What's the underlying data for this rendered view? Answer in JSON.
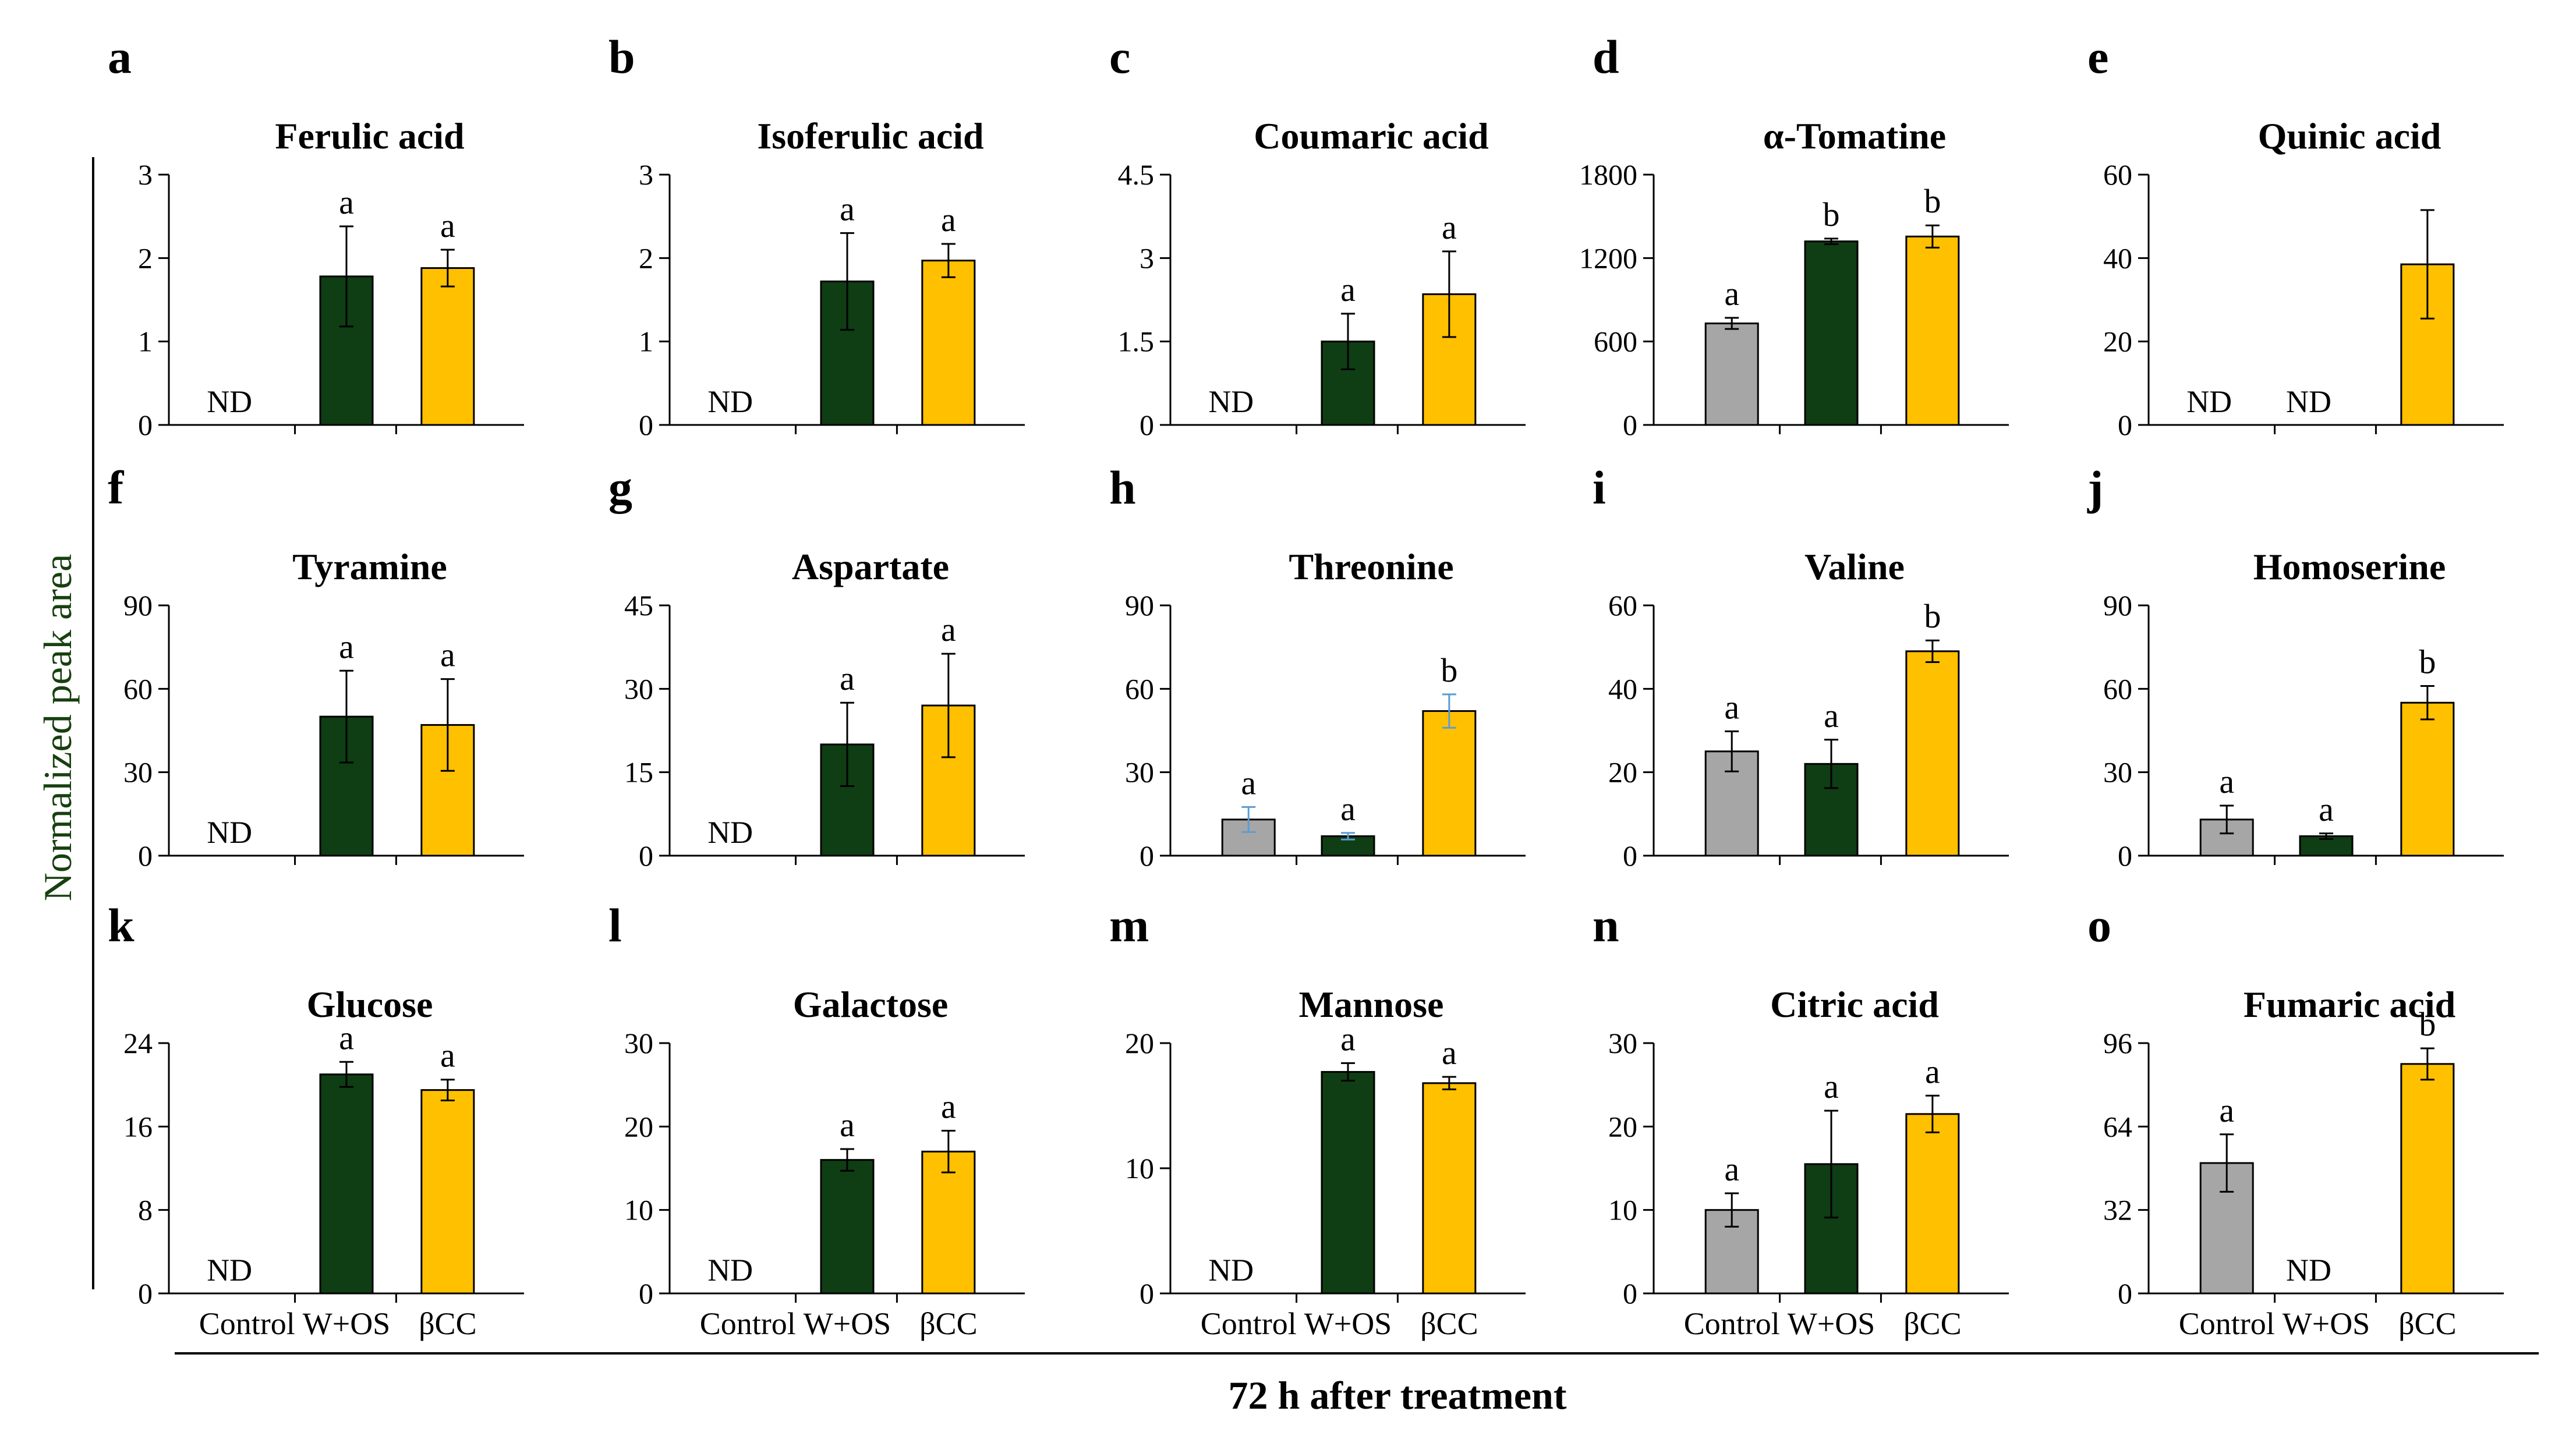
{
  "figure": {
    "ylabel": "Normalized peak area",
    "xlabel": "72 h after treatment",
    "colors": {
      "Control": "#a6a6a6",
      "W+OS": "#0f3d14",
      "βCC": "#ffc000",
      "error_bar": "#000000",
      "error_bar_alt": "#5b9bd5",
      "ylabel": "#17400f"
    },
    "nd_text": "ND"
  },
  "chart_data": [
    {
      "id": "a",
      "type": "bar",
      "title": "Ferulic acid",
      "categories": [
        "Control",
        "W+OS",
        "βCC"
      ],
      "values": [
        null,
        1.78,
        1.88
      ],
      "errors": [
        null,
        0.6,
        0.22
      ],
      "sig": [
        "",
        "a",
        "a"
      ],
      "nd": [
        true,
        false,
        false
      ],
      "yticks": [
        0,
        1,
        2,
        3
      ],
      "ytick_labels": [
        "0",
        "1",
        "2",
        "3"
      ],
      "ylim": [
        0,
        3
      ]
    },
    {
      "id": "b",
      "type": "bar",
      "title": "Isoferulic acid",
      "categories": [
        "Control",
        "W+OS",
        "βCC"
      ],
      "values": [
        null,
        1.72,
        1.97
      ],
      "errors": [
        null,
        0.58,
        0.2
      ],
      "sig": [
        "",
        "a",
        "a"
      ],
      "nd": [
        true,
        false,
        false
      ],
      "yticks": [
        0,
        1,
        2,
        3
      ],
      "ytick_labels": [
        "0",
        "1",
        "2",
        "3"
      ],
      "ylim": [
        0,
        3
      ]
    },
    {
      "id": "c",
      "type": "bar",
      "title": "Coumaric acid",
      "categories": [
        "Control",
        "W+OS",
        "βCC"
      ],
      "values": [
        null,
        1.5,
        2.35
      ],
      "errors": [
        null,
        0.5,
        0.77
      ],
      "sig": [
        "",
        "a",
        "a"
      ],
      "nd": [
        true,
        false,
        false
      ],
      "yticks": [
        0,
        1.5,
        3,
        4.5
      ],
      "ytick_labels": [
        "0",
        "1.5",
        "3",
        "4.5"
      ],
      "ylim": [
        0,
        4.5
      ]
    },
    {
      "id": "d",
      "type": "bar",
      "title": "α-Tomatine",
      "categories": [
        "Control",
        "W+OS",
        "βCC"
      ],
      "values": [
        730,
        1320,
        1355
      ],
      "errors": [
        40,
        20,
        80
      ],
      "sig": [
        "a",
        "b",
        "b"
      ],
      "nd": [
        false,
        false,
        false
      ],
      "yticks": [
        0,
        600,
        1200,
        1800
      ],
      "ytick_labels": [
        "0",
        "600",
        "1200",
        "1800"
      ],
      "ylim": [
        0,
        1800
      ]
    },
    {
      "id": "e",
      "type": "bar",
      "title": "Quinic acid",
      "categories": [
        "Control",
        "W+OS",
        "βCC"
      ],
      "values": [
        null,
        null,
        38.5
      ],
      "errors": [
        null,
        null,
        13
      ],
      "sig": [
        "",
        "",
        ""
      ],
      "nd": [
        true,
        true,
        false
      ],
      "yticks": [
        0,
        20,
        40,
        60
      ],
      "ytick_labels": [
        "0",
        "20",
        "40",
        "60"
      ],
      "ylim": [
        0,
        60
      ]
    },
    {
      "id": "f",
      "type": "bar",
      "title": "Tyramine",
      "categories": [
        "Control",
        "W+OS",
        "βCC"
      ],
      "values": [
        null,
        50,
        47
      ],
      "errors": [
        null,
        16.5,
        16.5
      ],
      "sig": [
        "",
        "a",
        "a"
      ],
      "nd": [
        true,
        false,
        false
      ],
      "yticks": [
        0,
        30,
        60,
        90
      ],
      "ytick_labels": [
        "0",
        "30",
        "60",
        "90"
      ],
      "ylim": [
        0,
        90
      ]
    },
    {
      "id": "g",
      "type": "bar",
      "title": "Aspartate",
      "categories": [
        "Control",
        "W+OS",
        "βCC"
      ],
      "values": [
        null,
        20,
        27
      ],
      "errors": [
        null,
        7.5,
        9.3
      ],
      "sig": [
        "",
        "a",
        "a"
      ],
      "nd": [
        true,
        false,
        false
      ],
      "yticks": [
        0,
        15,
        30,
        45
      ],
      "ytick_labels": [
        "0",
        "15",
        "30",
        "45"
      ],
      "ylim": [
        0,
        45
      ]
    },
    {
      "id": "h",
      "type": "bar",
      "title": "Threonine",
      "categories": [
        "Control",
        "W+OS",
        "βCC"
      ],
      "values": [
        13,
        7,
        52
      ],
      "errors": [
        4.5,
        1.2,
        6
      ],
      "sig": [
        "a",
        "a",
        "b"
      ],
      "nd": [
        false,
        false,
        false
      ],
      "error_color": "#5b9bd5",
      "yticks": [
        0,
        30,
        60,
        90
      ],
      "ytick_labels": [
        "0",
        "30",
        "60",
        "90"
      ],
      "ylim": [
        0,
        90
      ]
    },
    {
      "id": "i",
      "type": "bar",
      "title": "Valine",
      "categories": [
        "Control",
        "W+OS",
        "βCC"
      ],
      "values": [
        25,
        22,
        49
      ],
      "errors": [
        4.8,
        5.8,
        2.6
      ],
      "sig": [
        "a",
        "a",
        "b"
      ],
      "nd": [
        false,
        false,
        false
      ],
      "yticks": [
        0,
        20,
        40,
        60
      ],
      "ytick_labels": [
        "0",
        "20",
        "40",
        "60"
      ],
      "ylim": [
        0,
        60
      ]
    },
    {
      "id": "j",
      "type": "bar",
      "title": "Homoserine",
      "categories": [
        "Control",
        "W+OS",
        "βCC"
      ],
      "values": [
        13,
        7,
        55
      ],
      "errors": [
        5,
        1,
        6
      ],
      "sig": [
        "a",
        "a",
        "b"
      ],
      "nd": [
        false,
        false,
        false
      ],
      "yticks": [
        0,
        30,
        60,
        90
      ],
      "ytick_labels": [
        "0",
        "30",
        "60",
        "90"
      ],
      "ylim": [
        0,
        90
      ]
    },
    {
      "id": "k",
      "type": "bar",
      "title": "Glucose",
      "categories": [
        "Control",
        "W+OS",
        "βCC"
      ],
      "values": [
        null,
        21,
        19.5
      ],
      "errors": [
        null,
        1.2,
        1
      ],
      "sig": [
        "",
        "a",
        "a"
      ],
      "nd": [
        true,
        false,
        false
      ],
      "yticks": [
        0,
        8,
        16,
        24
      ],
      "ytick_labels": [
        "0",
        "8",
        "16",
        "24"
      ],
      "ylim": [
        0,
        24
      ]
    },
    {
      "id": "l",
      "type": "bar",
      "title": "Galactose",
      "categories": [
        "Control",
        "W+OS",
        "βCC"
      ],
      "values": [
        null,
        16,
        17
      ],
      "errors": [
        null,
        1.3,
        2.5
      ],
      "sig": [
        "",
        "a",
        "a"
      ],
      "nd": [
        true,
        false,
        false
      ],
      "yticks": [
        0,
        10,
        20,
        30
      ],
      "ytick_labels": [
        "0",
        "10",
        "20",
        "30"
      ],
      "ylim": [
        0,
        30
      ]
    },
    {
      "id": "m",
      "type": "bar",
      "title": "Mannose",
      "categories": [
        "Control",
        "W+OS",
        "βCC"
      ],
      "values": [
        null,
        17.7,
        16.8
      ],
      "errors": [
        null,
        0.7,
        0.5
      ],
      "sig": [
        "",
        "a",
        "a"
      ],
      "nd": [
        true,
        false,
        false
      ],
      "yticks": [
        0,
        10,
        20
      ],
      "ytick_labels": [
        "0",
        "10",
        "20"
      ],
      "ylim": [
        0,
        20
      ]
    },
    {
      "id": "n",
      "type": "bar",
      "title": "Citric acid",
      "categories": [
        "Control",
        "W+OS",
        "βCC"
      ],
      "values": [
        10,
        15.5,
        21.5
      ],
      "errors": [
        2,
        6.4,
        2.2
      ],
      "sig": [
        "a",
        "a",
        "a"
      ],
      "nd": [
        false,
        false,
        false
      ],
      "yticks": [
        0,
        10,
        20,
        30
      ],
      "ytick_labels": [
        "0",
        "10",
        "20",
        "30"
      ],
      "ylim": [
        0,
        30
      ]
    },
    {
      "id": "o",
      "type": "bar",
      "title": "Fumaric acid",
      "categories": [
        "Control",
        "W+OS",
        "βCC"
      ],
      "values": [
        50,
        null,
        88
      ],
      "errors": [
        11,
        null,
        6
      ],
      "sig": [
        "a",
        "",
        "b"
      ],
      "nd": [
        false,
        true,
        false
      ],
      "yticks": [
        0,
        32,
        64,
        96
      ],
      "ytick_labels": [
        "0",
        "32",
        "64",
        "96"
      ],
      "ylim": [
        0,
        96
      ]
    }
  ]
}
